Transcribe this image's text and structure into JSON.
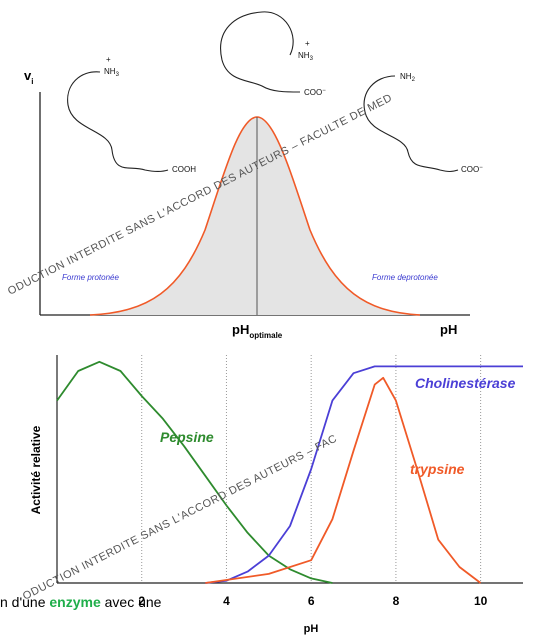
{
  "top_figure": {
    "y_label": "v",
    "y_label_sub": "i",
    "x_label": "pH",
    "optimum_label": "pH",
    "optimum_sub": "optimale",
    "left_form": "Forme protonée",
    "right_form": "Forme deprotonée",
    "left_groups": [
      "NH",
      "3",
      "+",
      "COOH"
    ],
    "middle_groups": [
      "NH",
      "3",
      "+",
      "COO",
      "−"
    ],
    "right_groups": [
      "NH",
      "2",
      "COO",
      "−"
    ],
    "watermark": "ODUCTION INTERDITE SANS L'ACCORD DES AUTEURS – FACULTE DE MED"
  },
  "chart_data": {
    "type": "line",
    "x_label": "pH",
    "y_label": "Activité relative",
    "xlim": [
      0,
      11
    ],
    "ylim": [
      0,
      100
    ],
    "xticks": [
      2,
      4,
      6,
      8,
      10
    ],
    "grid": true,
    "series": [
      {
        "name": "Pepsine",
        "color": "#2e8b2e",
        "x": [
          0,
          0.5,
          1,
          1.5,
          2,
          2.5,
          3,
          3.5,
          4,
          4.5,
          5,
          5.5,
          6,
          6.5
        ],
        "values": [
          80,
          93,
          97,
          93,
          82,
          72,
          60,
          47,
          34,
          22,
          12,
          6,
          2,
          0
        ]
      },
      {
        "name": "Cholinestérase",
        "color": "#4b3fd6",
        "x": [
          3.5,
          4,
          4.5,
          5,
          5.5,
          6,
          6.5,
          7,
          7.5,
          8,
          9,
          10,
          11
        ],
        "values": [
          0,
          1,
          5,
          12,
          25,
          50,
          80,
          92,
          95,
          95,
          95,
          95,
          95
        ]
      },
      {
        "name": "trypsine",
        "color": "#f05a28",
        "x": [
          3.5,
          5,
          6,
          6.5,
          7,
          7.5,
          7.7,
          8,
          8.5,
          9,
          9.5,
          10
        ],
        "values": [
          0,
          4,
          10,
          28,
          58,
          87,
          90,
          80,
          50,
          19,
          7,
          0
        ]
      }
    ],
    "watermark": "ODUCTION INTERDITE SANS L'ACCORD DES AUTEURS – FAC"
  },
  "caption": {
    "before": "n d'une ",
    "highlight": "enzyme",
    "after": " avec une"
  }
}
